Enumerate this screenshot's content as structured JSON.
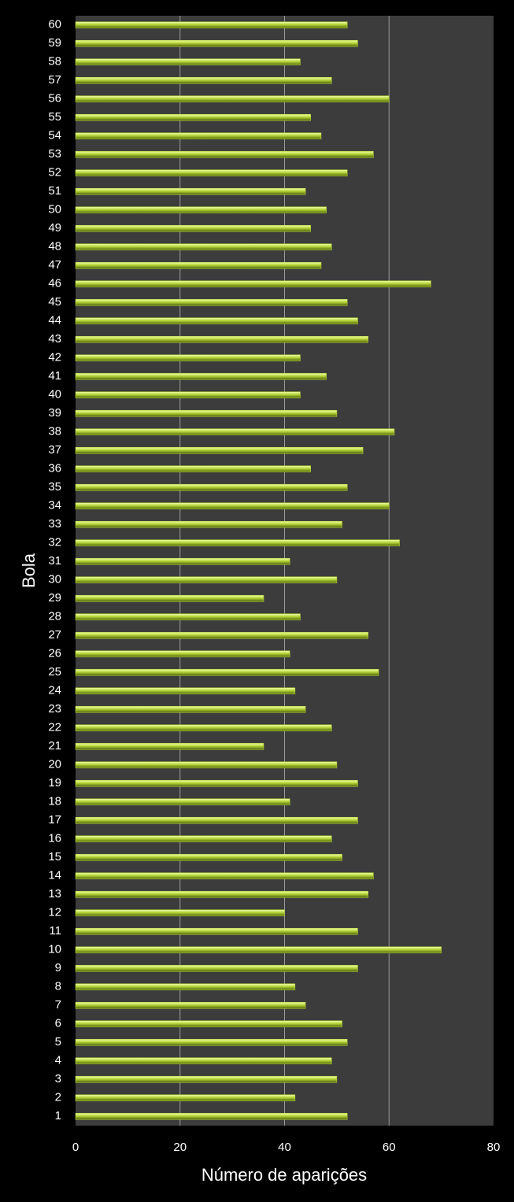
{
  "chart_data": {
    "type": "barh",
    "xlabel": "Número de aparições",
    "ylabel": "Bola",
    "categories": [
      "1",
      "2",
      "3",
      "4",
      "5",
      "6",
      "7",
      "8",
      "9",
      "10",
      "11",
      "12",
      "13",
      "14",
      "15",
      "16",
      "17",
      "18",
      "19",
      "20",
      "21",
      "22",
      "23",
      "24",
      "25",
      "26",
      "27",
      "28",
      "29",
      "30",
      "31",
      "32",
      "33",
      "34",
      "35",
      "36",
      "37",
      "38",
      "39",
      "40",
      "41",
      "42",
      "43",
      "44",
      "45",
      "46",
      "47",
      "48",
      "49",
      "50",
      "51",
      "52",
      "53",
      "54",
      "55",
      "56",
      "57",
      "58",
      "59",
      "60"
    ],
    "values": [
      52,
      42,
      50,
      49,
      52,
      51,
      44,
      42,
      54,
      70,
      54,
      40,
      56,
      57,
      51,
      49,
      54,
      41,
      54,
      50,
      36,
      49,
      44,
      42,
      58,
      41,
      56,
      43,
      36,
      50,
      41,
      62,
      51,
      60,
      52,
      45,
      55,
      61,
      50,
      43,
      48,
      43,
      56,
      54,
      52,
      68,
      47,
      49,
      45,
      48,
      44,
      52,
      57,
      47,
      45,
      60,
      49,
      43,
      54,
      52
    ],
    "color": "#b5d334",
    "xlim": [
      0,
      80
    ],
    "xticks": [
      0,
      20,
      40,
      60,
      80
    ],
    "grid": true
  }
}
